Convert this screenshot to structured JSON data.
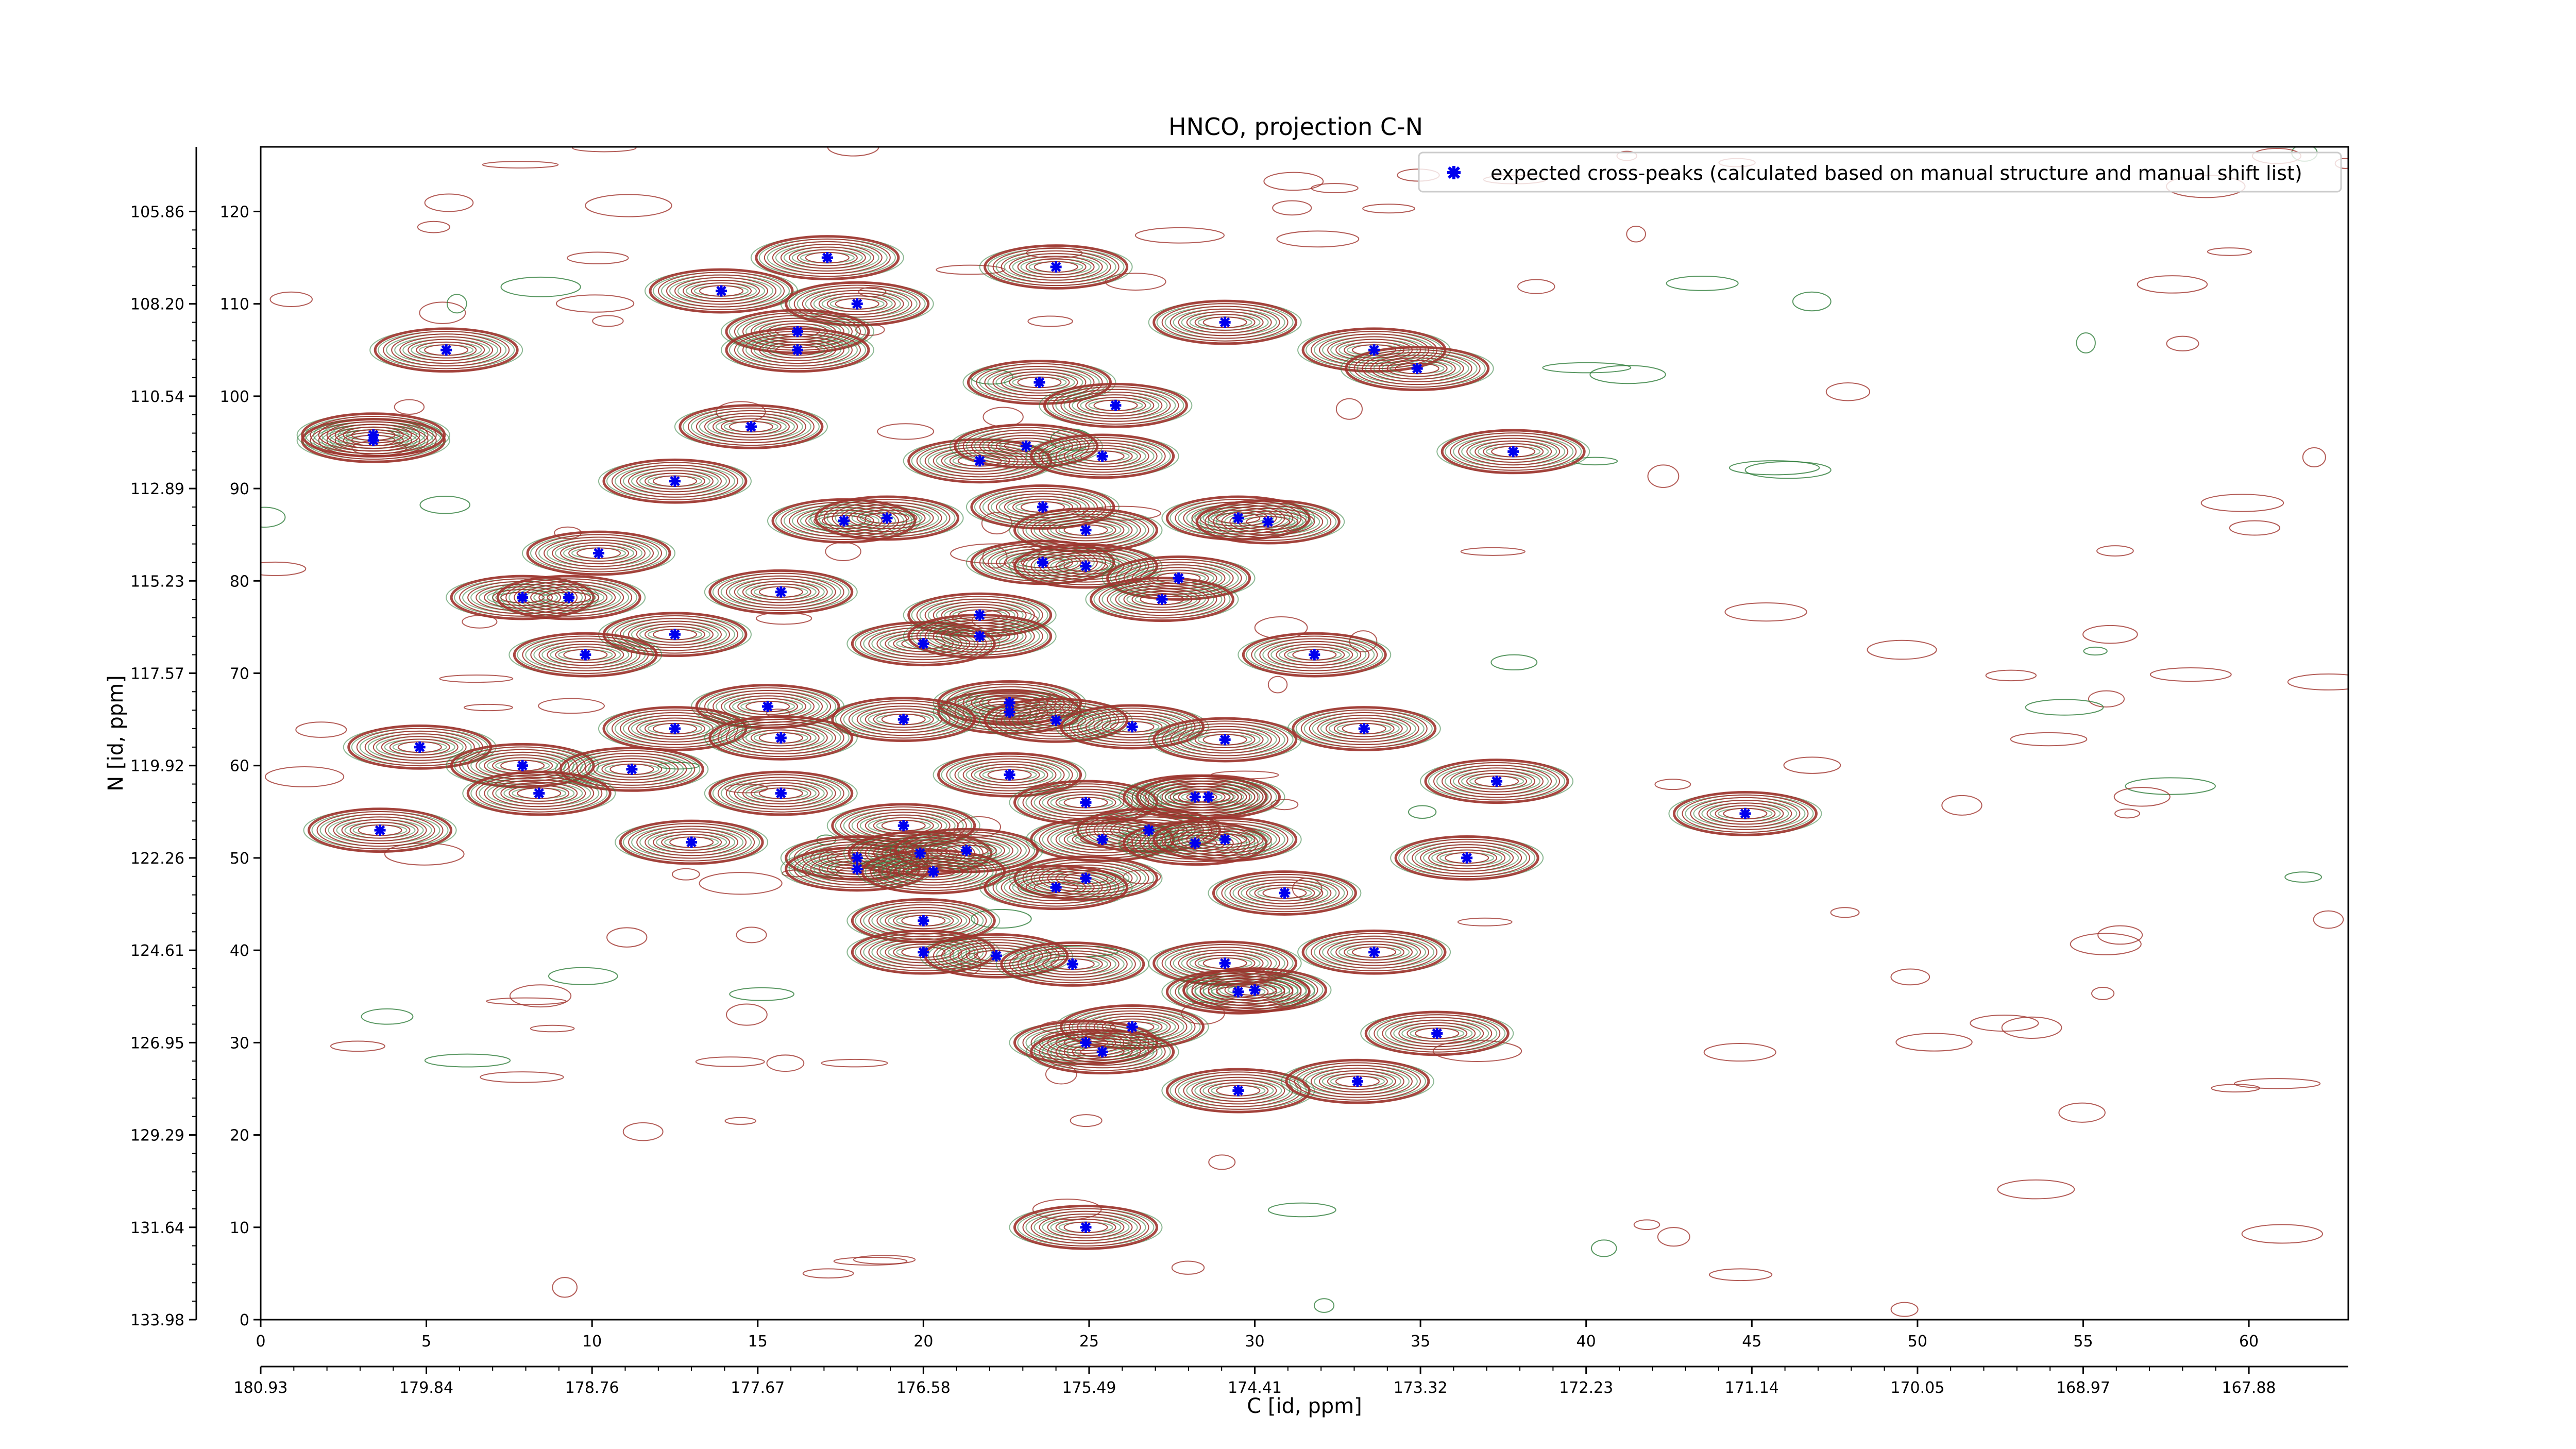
{
  "chart_data": {
    "type": "scatter",
    "title": "HNCO, projection C-N",
    "xlabel": "C [id, ppm]",
    "ylabel": "N [id, ppm]",
    "x_index_range": [
      0,
      63
    ],
    "y_index_range": [
      0,
      127
    ],
    "x_index_ticks": [
      "0",
      "5",
      "10",
      "15",
      "20",
      "25",
      "30",
      "35",
      "40",
      "45",
      "50",
      "55",
      "60"
    ],
    "x_ppm_ticks": [
      "180.93",
      "179.84",
      "178.76",
      "177.67",
      "176.58",
      "175.49",
      "174.41",
      "173.32",
      "172.23",
      "171.14",
      "170.05",
      "168.97",
      "167.88"
    ],
    "y_index_ticks": [
      "0",
      "10",
      "20",
      "30",
      "40",
      "50",
      "60",
      "70",
      "80",
      "90",
      "100",
      "110",
      "120"
    ],
    "y_ppm_ticks": [
      "133.98",
      "131.64",
      "129.29",
      "126.95",
      "124.61",
      "122.26",
      "119.92",
      "117.57",
      "115.23",
      "112.89",
      "110.54",
      "108.20",
      "105.86"
    ],
    "legend": {
      "placement": "top-right",
      "label": "expected cross-peaks (calculated based on manual structure and manual shift list)"
    },
    "colors": {
      "marker": "#0000ee",
      "contour_positive": "#a0332d",
      "contour_negative": "#2e7d3a"
    },
    "series": [
      {
        "name": "expected cross-peaks (calculated based on manual structure and manual shift list)",
        "points": [
          [
            5.6,
            105.0
          ],
          [
            3.4,
            95.2
          ],
          [
            3.4,
            95.8
          ],
          [
            14.8,
            96.7
          ],
          [
            12.5,
            90.8
          ],
          [
            13.9,
            111.4
          ],
          [
            17.1,
            115.0
          ],
          [
            18.0,
            110.0
          ],
          [
            16.2,
            107.0
          ],
          [
            16.2,
            105.0
          ],
          [
            24.0,
            114.0
          ],
          [
            23.5,
            101.5
          ],
          [
            29.1,
            108.0
          ],
          [
            33.6,
            105.0
          ],
          [
            34.9,
            103.0
          ],
          [
            25.8,
            99.0
          ],
          [
            21.7,
            93.0
          ],
          [
            23.1,
            94.6
          ],
          [
            25.4,
            93.5
          ],
          [
            37.8,
            94.0
          ],
          [
            23.6,
            88.0
          ],
          [
            17.6,
            86.5
          ],
          [
            18.9,
            86.8
          ],
          [
            24.9,
            85.5
          ],
          [
            29.5,
            86.8
          ],
          [
            30.4,
            86.4
          ],
          [
            10.2,
            83.0
          ],
          [
            23.6,
            82.0
          ],
          [
            24.9,
            81.6
          ],
          [
            27.7,
            80.3
          ],
          [
            7.9,
            78.2
          ],
          [
            9.3,
            78.2
          ],
          [
            15.7,
            78.8
          ],
          [
            27.2,
            78.0
          ],
          [
            21.7,
            76.3
          ],
          [
            20.0,
            73.2
          ],
          [
            21.7,
            74.0
          ],
          [
            12.5,
            74.2
          ],
          [
            9.8,
            72.0
          ],
          [
            31.8,
            72.0
          ],
          [
            15.3,
            66.4
          ],
          [
            22.6,
            65.8
          ],
          [
            22.6,
            66.8
          ],
          [
            19.4,
            65.0
          ],
          [
            24.0,
            64.9
          ],
          [
            26.3,
            64.2
          ],
          [
            33.3,
            64.0
          ],
          [
            12.5,
            64.0
          ],
          [
            15.7,
            63.0
          ],
          [
            29.1,
            62.8
          ],
          [
            4.8,
            62.0
          ],
          [
            7.9,
            60.0
          ],
          [
            11.2,
            59.6
          ],
          [
            22.6,
            59.0
          ],
          [
            37.3,
            58.3
          ],
          [
            8.4,
            57.0
          ],
          [
            15.7,
            57.0
          ],
          [
            24.9,
            56.0
          ],
          [
            28.2,
            56.6
          ],
          [
            28.6,
            56.6
          ],
          [
            44.8,
            54.8
          ],
          [
            19.4,
            53.5
          ],
          [
            26.8,
            53.0
          ],
          [
            25.4,
            52.0
          ],
          [
            28.2,
            51.6
          ],
          [
            29.1,
            52.0
          ],
          [
            3.6,
            53.0
          ],
          [
            13.0,
            51.7
          ],
          [
            18.0,
            50.0
          ],
          [
            18.0,
            48.8
          ],
          [
            19.9,
            50.5
          ],
          [
            21.3,
            50.8
          ],
          [
            20.3,
            48.5
          ],
          [
            24.9,
            47.8
          ],
          [
            36.4,
            50.0
          ],
          [
            24.0,
            46.8
          ],
          [
            30.9,
            46.2
          ],
          [
            20.0,
            43.2
          ],
          [
            20.0,
            39.8
          ],
          [
            22.2,
            39.4
          ],
          [
            24.5,
            38.5
          ],
          [
            29.1,
            38.6
          ],
          [
            33.6,
            39.8
          ],
          [
            29.5,
            35.5
          ],
          [
            30.0,
            35.7
          ],
          [
            26.3,
            31.7
          ],
          [
            24.9,
            30.0
          ],
          [
            25.4,
            29.0
          ],
          [
            35.5,
            31.0
          ],
          [
            29.5,
            24.8
          ],
          [
            33.1,
            25.8
          ],
          [
            24.9,
            10.0
          ]
        ]
      }
    ]
  }
}
